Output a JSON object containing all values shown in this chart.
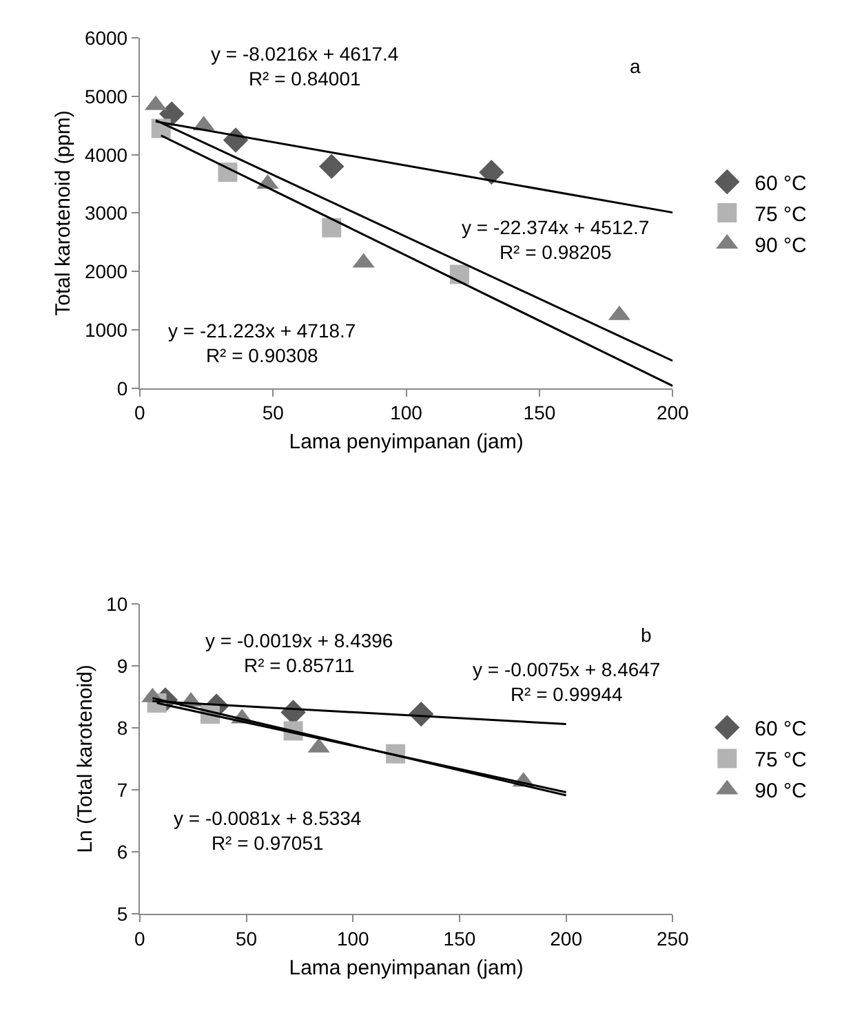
{
  "chart_data": [
    {
      "type": "scatter",
      "xlabel": "Lama penyimpanan (jam)",
      "ylabel": "Total karotenoid (ppm)",
      "xlim": [
        0,
        200
      ],
      "xticks": [
        0,
        50,
        100,
        150,
        200
      ],
      "ylim": [
        0,
        6000
      ],
      "yticks": [
        0,
        1000,
        2000,
        3000,
        4000,
        5000,
        6000
      ],
      "grid": false,
      "legend": "right",
      "series": [
        {
          "name": "60 °C",
          "color": "#5a5a5a",
          "marker": "diamond",
          "x": [
            12,
            36,
            72,
            132
          ],
          "values": [
            4700,
            4250,
            3800,
            3700
          ]
        },
        {
          "name": "75 °C",
          "color": "#b3b3b3",
          "marker": "square",
          "x": [
            8,
            33,
            72,
            120
          ],
          "values": [
            4450,
            3700,
            2750,
            1950
          ]
        },
        {
          "name": "90 °C",
          "color": "#7f7f7f",
          "marker": "triangle",
          "x": [
            6,
            24,
            48,
            84,
            180
          ],
          "values": [
            4850,
            4500,
            3500,
            2150,
            1250
          ]
        },
        {
          "type": "line",
          "color": "#000000",
          "marker": "none",
          "x": [
            6,
            200
          ],
          "values": [
            4570,
            3010
          ]
        },
        {
          "type": "line",
          "color": "#000000",
          "marker": "none",
          "x": [
            8,
            200
          ],
          "values": [
            4330,
            40
          ]
        },
        {
          "type": "line",
          "color": "#000000",
          "marker": "none",
          "x": [
            6,
            200
          ],
          "values": [
            4590,
            470
          ]
        }
      ],
      "annotations": [
        "y = -8.0216x + 4617.4\nR² = 0.84001",
        "y = -22.374x + 4512.7\nR² = 0.98205",
        "y = -21.223x + 4718.7\nR² = 0.90308",
        "a"
      ]
    },
    {
      "type": "scatter",
      "xlabel": "Lama penyimpanan (jam)",
      "ylabel": "Ln (Total karotenoid)",
      "xlim": [
        0,
        250
      ],
      "xticks": [
        0,
        50,
        100,
        150,
        200,
        250
      ],
      "ylim": [
        5,
        10
      ],
      "yticks": [
        5,
        6,
        7,
        8,
        9,
        10
      ],
      "grid": false,
      "legend": "right",
      "series": [
        {
          "name": "60 °C",
          "color": "#5a5a5a",
          "marker": "diamond",
          "x": [
            12,
            36,
            72,
            132
          ],
          "values": [
            8.45,
            8.35,
            8.25,
            8.22
          ]
        },
        {
          "name": "75 °C",
          "color": "#b3b3b3",
          "marker": "square",
          "x": [
            8,
            33,
            72,
            120
          ],
          "values": [
            8.4,
            8.22,
            7.95,
            7.58
          ]
        },
        {
          "name": "90 °C",
          "color": "#7f7f7f",
          "marker": "triangle",
          "x": [
            6,
            24,
            48,
            84,
            180
          ],
          "values": [
            8.49,
            8.42,
            8.15,
            7.68,
            7.13
          ]
        },
        {
          "type": "line",
          "color": "#000000",
          "marker": "none",
          "x": [
            6,
            200
          ],
          "values": [
            8.43,
            8.06
          ]
        },
        {
          "type": "line",
          "color": "#000000",
          "marker": "none",
          "x": [
            8,
            200
          ],
          "values": [
            8.4,
            6.96
          ]
        },
        {
          "type": "line",
          "color": "#000000",
          "marker": "none",
          "x": [
            6,
            200
          ],
          "values": [
            8.48,
            6.91
          ]
        }
      ],
      "annotations": [
        "y = -0.0019x + 8.4396\nR² = 0.85711",
        "y = -0.0075x + 8.4647\nR² = 0.99944",
        "y = -0.0081x + 8.5334\nR² = 0.97051",
        "b"
      ]
    }
  ]
}
